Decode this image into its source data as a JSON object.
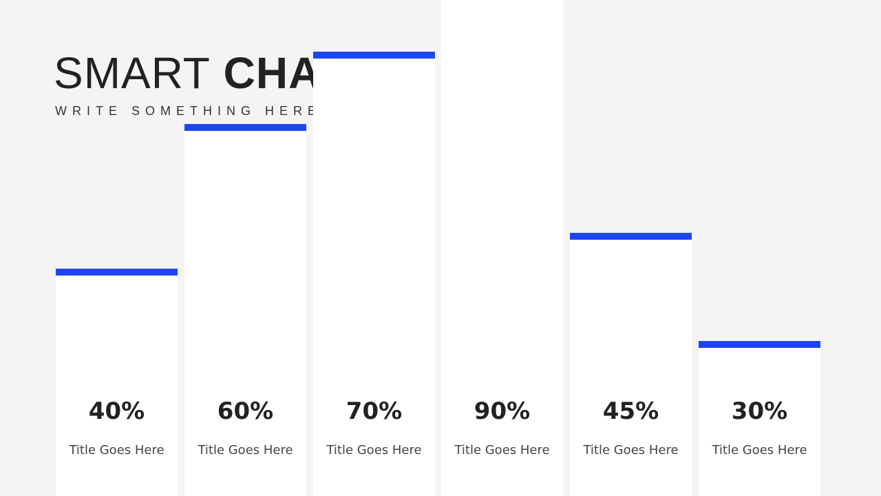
{
  "header": {
    "title_light": "SMART",
    "title_bold": "CHART",
    "subtitle": "WRITE SOMETHING HERE"
  },
  "colors": {
    "accent": "#1e46f0",
    "bar_fill": "#ffffff",
    "background": "#f4f4f4"
  },
  "chart_data": {
    "type": "bar",
    "title": "SMART CHART",
    "subtitle": "WRITE SOMETHING HERE",
    "categories": [
      "Title Goes Here",
      "Title Goes Here",
      "Title Goes Here",
      "Title Goes Here",
      "Title Goes Here",
      "Title Goes Here"
    ],
    "values": [
      40,
      60,
      70,
      90,
      45,
      30
    ],
    "value_labels": [
      "40%",
      "60%",
      "70%",
      "90%",
      "45%",
      "30%"
    ],
    "ylim": [
      0,
      100
    ],
    "grid": false,
    "legend": "none"
  }
}
